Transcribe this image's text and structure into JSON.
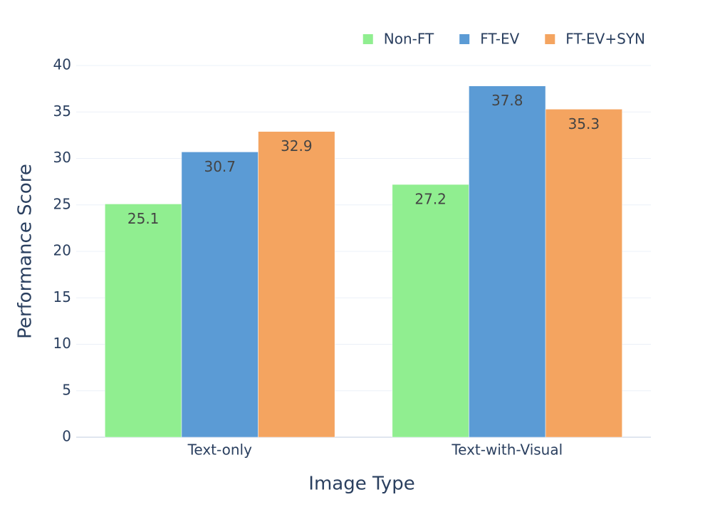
{
  "chart_data": {
    "type": "bar",
    "x_label": "Image Type",
    "y_label": "Performance Score",
    "categories": [
      "Text-only",
      "Text-with-Visual"
    ],
    "series": [
      {
        "name": "Non-FT",
        "color": "#90ee90",
        "values": [
          25.1,
          27.2
        ]
      },
      {
        "name": "FT-EV",
        "color": "#5b9bd5",
        "values": [
          30.7,
          37.8
        ]
      },
      {
        "name": "FT-EV+SYN",
        "color": "#f4a460",
        "values": [
          32.9,
          35.3
        ]
      }
    ],
    "ylim": [
      0,
      40
    ],
    "yticks": [
      0,
      5,
      10,
      15,
      20,
      25,
      30,
      35,
      40
    ],
    "grid": true,
    "legend": "top-right"
  }
}
